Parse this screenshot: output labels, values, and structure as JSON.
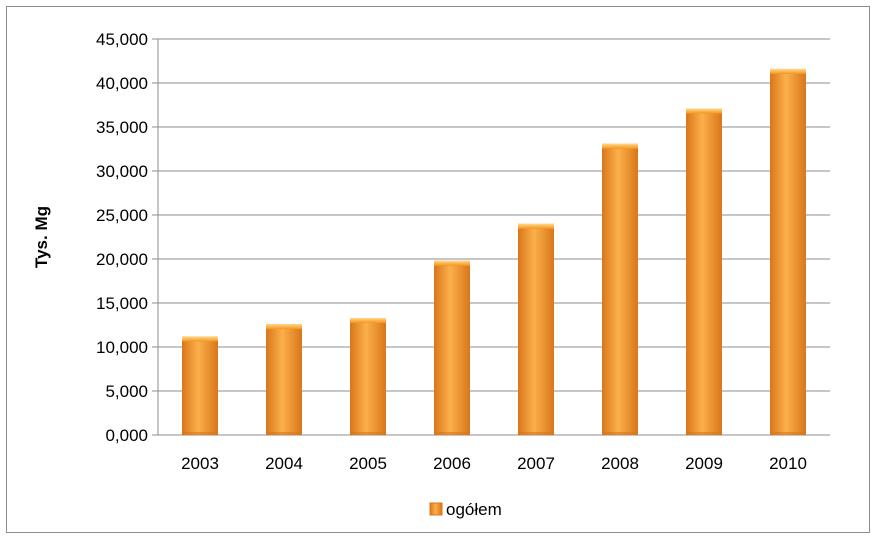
{
  "chart_data": {
    "type": "bar",
    "title": "",
    "xlabel": "",
    "ylabel": "Tys. Mg",
    "categories": [
      "2003",
      "2004",
      "2005",
      "2006",
      "2007",
      "2008",
      "2009",
      "2010"
    ],
    "series": [
      {
        "name": "ogółem",
        "values": [
          11.2,
          12.6,
          13.3,
          19.8,
          24.0,
          33.1,
          37.1,
          41.6
        ]
      }
    ],
    "ylim": [
      0,
      45
    ],
    "yticks": [
      "0,000",
      "5,000",
      "10,000",
      "15,000",
      "20,000",
      "25,000",
      "30,000",
      "35,000",
      "40,000",
      "45,000"
    ],
    "grid": true,
    "legend_position": "bottom",
    "colors": {
      "bar": "#f7941d",
      "bar_light": "#fbb04c",
      "bar_dark": "#d9761a",
      "grid": "#8c8c8c"
    }
  }
}
